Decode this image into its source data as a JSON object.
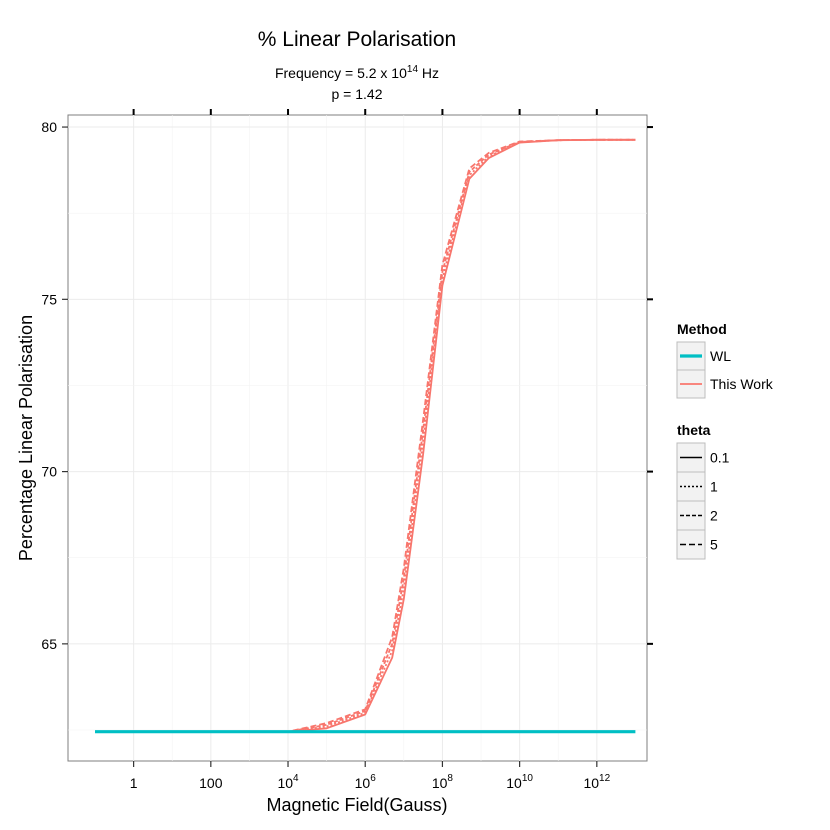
{
  "chart_data": {
    "type": "line",
    "title": "% Linear Polarisation",
    "subtitle_lines": [
      {
        "prefix": "Frequency = 5.2 x 10",
        "sup": "14",
        "suffix": " Hz"
      },
      {
        "prefix": "p = 1.42",
        "sup": "",
        "suffix": ""
      }
    ],
    "xlabel": "Magnetic Field(Gauss)",
    "ylabel": "Percentage Linear Polarisation",
    "x_scale": "log10",
    "x_ticks": [
      {
        "base": "1",
        "exp": ""
      },
      {
        "base": "100",
        "exp": ""
      },
      {
        "base": "10",
        "exp": "4"
      },
      {
        "base": "10",
        "exp": "6"
      },
      {
        "base": "10",
        "exp": "8"
      },
      {
        "base": "10",
        "exp": "10"
      },
      {
        "base": "10",
        "exp": "12"
      }
    ],
    "y_ticks": [
      "65",
      "70",
      "75",
      "80"
    ],
    "xlim_log10": [
      -1.7,
      13.3
    ],
    "ylim": [
      61.6,
      80.35
    ],
    "grid": true,
    "legend_position": "right",
    "legend": {
      "method_title": "Method",
      "method_items": [
        {
          "label": "WL",
          "color": "#00BFC4",
          "width": 3.2
        },
        {
          "label": "This Work",
          "color": "#F8766D",
          "width": 1.8
        }
      ],
      "theta_title": "theta",
      "theta_items": [
        {
          "label": "0.1",
          "dash": ""
        },
        {
          "label": "1",
          "dash": "2,2"
        },
        {
          "label": "2",
          "dash": "4,2"
        },
        {
          "label": "5",
          "dash": "6,3"
        }
      ]
    },
    "series": [
      {
        "method": "WL",
        "theta": "0.1",
        "color": "#00BFC4",
        "dash": "",
        "x_log10": [
          -1,
          13
        ],
        "y": [
          62.45,
          62.45
        ]
      },
      {
        "method": "This Work",
        "theta": "0.1",
        "color": "#F8766D",
        "dash": "",
        "x_log10": [
          -1,
          4,
          5,
          6,
          6.7,
          7,
          7.5,
          8,
          8.7,
          9.2,
          10,
          11,
          12,
          13
        ],
        "y": [
          62.45,
          62.45,
          62.55,
          62.95,
          64.6,
          66.3,
          70.5,
          75.4,
          78.5,
          79.1,
          79.55,
          79.62,
          79.63,
          79.63
        ]
      },
      {
        "method": "This Work",
        "theta": "1",
        "color": "#F8766D",
        "dash": "2,2",
        "x_log10": [
          -1,
          4,
          5,
          6,
          6.7,
          7,
          7.5,
          8,
          8.7,
          9.2,
          10,
          11,
          12,
          13
        ],
        "y": [
          62.45,
          62.45,
          62.6,
          63.0,
          64.8,
          66.6,
          70.9,
          75.6,
          78.6,
          79.15,
          79.56,
          79.62,
          79.63,
          79.63
        ]
      },
      {
        "method": "This Work",
        "theta": "2",
        "color": "#F8766D",
        "dash": "4,2",
        "x_log10": [
          -1,
          4,
          5,
          6,
          6.7,
          7,
          7.5,
          8,
          8.7,
          9.2,
          10,
          11,
          12,
          13
        ],
        "y": [
          62.45,
          62.45,
          62.65,
          63.05,
          65.0,
          66.9,
          71.2,
          75.8,
          78.7,
          79.2,
          79.57,
          79.62,
          79.63,
          79.63
        ]
      },
      {
        "method": "This Work",
        "theta": "5",
        "color": "#F8766D",
        "dash": "6,3",
        "x_log10": [
          -1,
          4,
          5,
          6,
          6.7,
          7,
          7.5,
          8,
          8.7,
          9.2,
          10,
          11,
          12,
          13
        ],
        "y": [
          62.45,
          62.45,
          62.7,
          63.1,
          65.2,
          67.2,
          71.5,
          76.0,
          78.8,
          79.25,
          79.58,
          79.62,
          79.63,
          79.63
        ]
      }
    ]
  }
}
